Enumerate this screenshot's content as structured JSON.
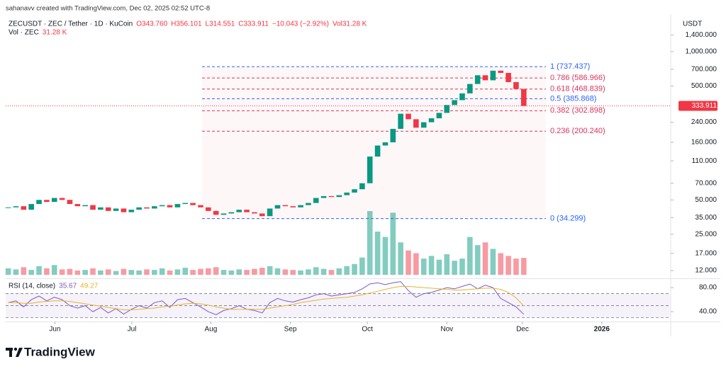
{
  "header": {
    "note": "sahanavv created with TradingView.com, Dec 02, 2025 02:52 UTC-8"
  },
  "footer": {
    "brand": "TradingView"
  },
  "chart_data": [
    {
      "type": "candlestick",
      "title": "ZECUSDT · ZEC / Tether · 1D · KuCoin",
      "ohlc": [
        "O343.760",
        "H356.101",
        "L314.551",
        "C333.911",
        "−10.043 (−2.92%)",
        "Vol31.28 K"
      ],
      "y_unit": "USDT",
      "log_scale": true,
      "ylim": [
        10.4,
        2070
      ],
      "yticks": [
        {
          "value": 1400,
          "label": "1,400.000"
        },
        {
          "value": 1000,
          "label": "1,000.000"
        },
        {
          "value": 700,
          "label": "700.000"
        },
        {
          "value": 500,
          "label": "500.000"
        },
        {
          "value": 240,
          "label": "240.000"
        },
        {
          "value": 160,
          "label": "160.000"
        },
        {
          "value": 110,
          "label": "110.000"
        },
        {
          "value": 70,
          "label": "70.000"
        },
        {
          "value": 50,
          "label": "50.000"
        },
        {
          "value": 35,
          "label": "35.000"
        },
        {
          "value": 25,
          "label": "25.000"
        },
        {
          "value": 17,
          "label": "17.000"
        },
        {
          "value": 12,
          "label": "12.000"
        }
      ],
      "xlim": [
        -1,
        258
      ],
      "xticks": [
        {
          "value": 18.2,
          "label": "Jun"
        },
        {
          "value": 48.2,
          "label": "Jul"
        },
        {
          "value": 79,
          "label": "Aug"
        },
        {
          "value": 110,
          "label": "Sep"
        },
        {
          "value": 140,
          "label": "Oct"
        },
        {
          "value": 171,
          "label": "Nov"
        },
        {
          "value": 200.5,
          "label": "Dec"
        },
        {
          "value": 231.4,
          "label": "2026"
        }
      ],
      "x": [
        0,
        3,
        6,
        9,
        12,
        15,
        18,
        21,
        24,
        27,
        30,
        33,
        36,
        39,
        42,
        45,
        48,
        51,
        54,
        57,
        60,
        63,
        66,
        69,
        72,
        75,
        78,
        81,
        84,
        87,
        90,
        93,
        96,
        99,
        102,
        105,
        108,
        111,
        114,
        117,
        120,
        123,
        126,
        129,
        132,
        135,
        138,
        141,
        144,
        147,
        150,
        153,
        156,
        159,
        162,
        165,
        168,
        171,
        174,
        177,
        180,
        183,
        186,
        189,
        192,
        195,
        198,
        201
      ],
      "closes": [
        43,
        44,
        41,
        46,
        50,
        48,
        52,
        50,
        46,
        44,
        45,
        41,
        43,
        40,
        42,
        39,
        41,
        43,
        42,
        44,
        45,
        43,
        46,
        47,
        45,
        43,
        40,
        37,
        38,
        39,
        41,
        39,
        38,
        36,
        42,
        45,
        44,
        43,
        45,
        47,
        52,
        54,
        53,
        55,
        58,
        62,
        70,
        120,
        150,
        160,
        210,
        285,
        255,
        215,
        240,
        260,
        290,
        340,
        375,
        430,
        520,
        620,
        560,
        680,
        650,
        540,
        470,
        333.911
      ],
      "up_color": "#089981",
      "down_color": "#f23645",
      "last_price": 333.911,
      "fib": [
        {
          "label": "1 (737.437)",
          "value": 737.437,
          "color": "#2962ff"
        },
        {
          "label": "0.786 (586.966)",
          "value": 586.966,
          "color": "#d8345f"
        },
        {
          "label": "0.618 (468.839)",
          "value": 468.839,
          "color": "#d8345f"
        },
        {
          "label": "0.5 (385.868)",
          "value": 385.868,
          "color": "#2962ff"
        },
        {
          "label": "0.382 (302.898)",
          "value": 302.898,
          "color": "#d8345f"
        },
        {
          "label": "0.236 (200.240)",
          "value": 200.24,
          "color": "#d8345f"
        },
        {
          "label": "0 (34.299)",
          "value": 34.299,
          "color": "#2962ff"
        }
      ],
      "volume": {
        "name": "Vol · ZEC",
        "last_label": "31.28 K",
        "values": [
          12,
          10,
          14,
          9,
          16,
          12,
          18,
          10,
          11,
          8,
          9,
          12,
          8,
          10,
          7,
          11,
          9,
          8,
          10,
          9,
          12,
          8,
          10,
          13,
          9,
          11,
          12,
          14,
          9,
          8,
          10,
          9,
          11,
          13,
          16,
          12,
          10,
          9,
          8,
          10,
          14,
          11,
          9,
          12,
          16,
          20,
          32,
          118,
          80,
          70,
          115,
          60,
          45,
          40,
          30,
          35,
          28,
          38,
          26,
          30,
          70,
          55,
          60,
          48,
          40,
          35,
          30,
          31.28
        ]
      }
    },
    {
      "type": "line",
      "title": "RSI (14, close)",
      "ylim": [
        26,
        93
      ],
      "yticks": [
        {
          "value": 80,
          "label": "80.00"
        },
        {
          "value": 40,
          "label": "40.00"
        }
      ],
      "levels": [
        70,
        50,
        30
      ],
      "series": [
        {
          "name": "35.67",
          "color": "#7e57c2",
          "values": [
            55,
            58,
            48,
            60,
            66,
            58,
            64,
            60,
            50,
            46,
            50,
            40,
            47,
            38,
            45,
            36,
            44,
            50,
            46,
            55,
            58,
            47,
            60,
            62,
            55,
            48,
            40,
            35,
            42,
            45,
            50,
            44,
            42,
            38,
            55,
            62,
            58,
            56,
            60,
            63,
            68,
            70,
            66,
            68,
            70,
            72,
            78,
            86,
            88,
            85,
            88,
            90,
            75,
            64,
            70,
            72,
            76,
            80,
            78,
            82,
            86,
            78,
            84,
            80,
            62,
            55,
            48,
            35.67
          ]
        },
        {
          "name": "49.27",
          "color": "#e8b42c",
          "values": [
            55,
            55,
            54,
            54,
            56,
            57,
            58,
            58,
            57,
            55,
            53,
            51,
            49,
            47,
            45,
            43,
            43,
            44,
            45,
            46,
            48,
            49,
            51,
            53,
            54,
            53,
            51,
            48,
            46,
            44,
            44,
            44,
            44,
            44,
            46,
            48,
            50,
            52,
            55,
            57,
            59,
            61,
            62,
            63,
            64,
            66,
            68,
            71,
            74,
            77,
            80,
            82,
            82,
            81,
            80,
            79,
            78,
            77,
            76,
            76,
            77,
            78,
            79,
            79,
            77,
            72,
            63,
            49.27
          ]
        }
      ]
    }
  ]
}
